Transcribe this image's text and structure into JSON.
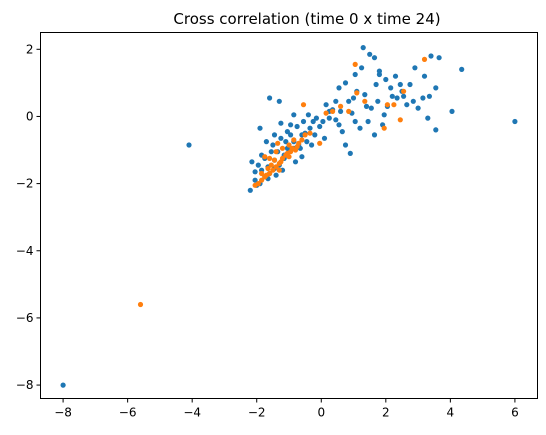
{
  "chart_data": {
    "type": "scatter",
    "title": "Cross correlation (time 0 x time 24)",
    "xlabel": "",
    "ylabel": "",
    "xlim": [
      -8.7,
      6.7
    ],
    "ylim": [
      -8.4,
      2.5
    ],
    "xticks": [
      -8,
      -6,
      -4,
      -2,
      0,
      2,
      4,
      6
    ],
    "yticks": [
      -8,
      -6,
      -4,
      -2,
      0,
      2
    ],
    "grid": false,
    "series": [
      {
        "color": "#1f77b4",
        "points": [
          [
            -8.0,
            -8.0
          ],
          [
            -4.1,
            -0.85
          ],
          [
            6.0,
            -0.15
          ],
          [
            4.35,
            1.4
          ],
          [
            4.05,
            0.15
          ],
          [
            3.55,
            -0.4
          ],
          [
            3.55,
            0.85
          ],
          [
            3.4,
            1.8
          ],
          [
            3.65,
            1.75
          ],
          [
            3.2,
            1.2
          ],
          [
            3.35,
            0.6
          ],
          [
            3.3,
            -0.05
          ],
          [
            2.9,
            1.45
          ],
          [
            2.75,
            0.95
          ],
          [
            2.85,
            0.45
          ],
          [
            2.45,
            0.95
          ],
          [
            2.55,
            0.6
          ],
          [
            2.35,
            0.55
          ],
          [
            2.65,
            0.35
          ],
          [
            2.05,
            0.3
          ],
          [
            2.15,
            0.85
          ],
          [
            2.0,
            1.1
          ],
          [
            1.8,
            1.35
          ],
          [
            1.65,
            1.75
          ],
          [
            1.8,
            1.25
          ],
          [
            1.5,
            1.85
          ],
          [
            1.3,
            2.05
          ],
          [
            1.25,
            1.45
          ],
          [
            1.05,
            1.25
          ],
          [
            1.1,
            0.75
          ],
          [
            1.35,
            0.65
          ],
          [
            1.55,
            0.25
          ],
          [
            1.75,
            0.45
          ],
          [
            1.95,
            0.05
          ],
          [
            1.45,
            -0.15
          ],
          [
            1.2,
            -0.35
          ],
          [
            1.65,
            -0.55
          ],
          [
            1.05,
            -0.15
          ],
          [
            0.85,
            0.45
          ],
          [
            0.75,
            1.0
          ],
          [
            0.55,
            0.85
          ],
          [
            0.45,
            0.45
          ],
          [
            0.35,
            0.2
          ],
          [
            0.15,
            0.35
          ],
          [
            0.25,
            -0.05
          ],
          [
            0.55,
            -0.25
          ],
          [
            0.75,
            -0.85
          ],
          [
            0.9,
            -1.1
          ],
          [
            0.05,
            -0.15
          ],
          [
            -0.05,
            -0.3
          ],
          [
            -0.25,
            -0.15
          ],
          [
            -0.35,
            -0.35
          ],
          [
            -0.5,
            -0.5
          ],
          [
            -0.45,
            -0.75
          ],
          [
            -0.6,
            -0.55
          ],
          [
            -0.75,
            -0.3
          ],
          [
            -0.65,
            -0.95
          ],
          [
            -0.85,
            -0.75
          ],
          [
            -0.95,
            -0.55
          ],
          [
            -1.05,
            -0.95
          ],
          [
            -1.25,
            -0.65
          ],
          [
            -1.15,
            -1.15
          ],
          [
            -1.35,
            -1.05
          ],
          [
            -1.45,
            -1.3
          ],
          [
            -1.55,
            -1.05
          ],
          [
            -1.65,
            -1.5
          ],
          [
            -1.75,
            -1.25
          ],
          [
            -1.85,
            -1.6
          ],
          [
            -1.95,
            -1.45
          ],
          [
            -2.05,
            -1.65
          ],
          [
            -2.15,
            -1.35
          ],
          [
            -2.2,
            -2.2
          ],
          [
            -2.05,
            -1.9
          ],
          [
            -1.9,
            -2.0
          ],
          [
            -1.75,
            -1.8
          ],
          [
            -1.6,
            -1.7
          ],
          [
            -1.45,
            -1.55
          ],
          [
            -1.3,
            -1.45
          ],
          [
            -1.15,
            -1.25
          ],
          [
            -1.0,
            -1.05
          ],
          [
            -0.85,
            -0.95
          ],
          [
            -0.7,
            -0.85
          ],
          [
            -1.1,
            -0.75
          ],
          [
            -1.5,
            -0.85
          ],
          [
            -1.85,
            -1.15
          ],
          [
            -1.6,
            0.55
          ],
          [
            -1.3,
            0.45
          ],
          [
            -1.9,
            -0.35
          ],
          [
            -1.25,
            -0.2
          ],
          [
            -1.05,
            -0.45
          ],
          [
            -0.85,
            0.05
          ],
          [
            -0.55,
            -0.15
          ],
          [
            -0.4,
            0.05
          ],
          [
            -1.45,
            -0.55
          ],
          [
            -1.7,
            -0.75
          ],
          [
            0.25,
            0.15
          ],
          [
            0.45,
            -0.1
          ],
          [
            0.65,
            -0.45
          ],
          [
            0.95,
            0.1
          ],
          [
            1.4,
            0.3
          ],
          [
            1.7,
            0.95
          ],
          [
            2.2,
            0.6
          ],
          [
            2.5,
            0.75
          ],
          [
            3.0,
            0.25
          ],
          [
            3.15,
            0.55
          ],
          [
            -0.2,
            -0.55
          ],
          [
            -0.6,
            -1.2
          ],
          [
            -1.2,
            -1.6
          ],
          [
            -1.65,
            -1.85
          ],
          [
            -2.0,
            -2.05
          ],
          [
            0.1,
            -0.65
          ],
          [
            -0.3,
            -0.85
          ],
          [
            -0.8,
            -1.35
          ],
          [
            -1.4,
            -1.75
          ],
          [
            2.3,
            1.2
          ],
          [
            1.0,
            0.55
          ],
          [
            0.6,
            0.15
          ],
          [
            -0.15,
            -0.05
          ],
          [
            -0.95,
            -0.25
          ],
          [
            1.9,
            -0.25
          ]
        ]
      },
      {
        "color": "#ff7f0e",
        "points": [
          [
            -5.6,
            -5.6
          ],
          [
            3.2,
            1.7
          ],
          [
            2.55,
            0.75
          ],
          [
            2.25,
            0.35
          ],
          [
            2.05,
            0.35
          ],
          [
            2.45,
            -0.1
          ],
          [
            1.95,
            -0.35
          ],
          [
            1.35,
            0.45
          ],
          [
            1.05,
            1.55
          ],
          [
            1.1,
            0.7
          ],
          [
            0.85,
            0.15
          ],
          [
            0.6,
            0.3
          ],
          [
            0.35,
            0.15
          ],
          [
            0.15,
            0.1
          ],
          [
            -0.55,
            0.35
          ],
          [
            -0.05,
            -0.8
          ],
          [
            -0.35,
            -0.5
          ],
          [
            -0.6,
            -0.7
          ],
          [
            -0.75,
            -0.9
          ],
          [
            -0.9,
            -0.95
          ],
          [
            -1.05,
            -1.1
          ],
          [
            -1.2,
            -1.25
          ],
          [
            -1.3,
            -1.4
          ],
          [
            -1.4,
            -1.5
          ],
          [
            -1.5,
            -1.6
          ],
          [
            -1.6,
            -1.7
          ],
          [
            -1.75,
            -1.8
          ],
          [
            -1.85,
            -1.9
          ],
          [
            -1.95,
            -2.0
          ],
          [
            -2.05,
            -2.05
          ],
          [
            -1.6,
            -1.25
          ],
          [
            -1.4,
            -1.05
          ],
          [
            -1.2,
            -0.95
          ],
          [
            -1.0,
            -0.85
          ],
          [
            -0.85,
            -0.7
          ],
          [
            -1.75,
            -1.2
          ],
          [
            -1.55,
            -1.45
          ],
          [
            -1.3,
            -1.6
          ],
          [
            -1.1,
            -1.15
          ],
          [
            -0.95,
            -1.05
          ],
          [
            -0.7,
            -0.8
          ],
          [
            -1.45,
            -1.3
          ],
          [
            -1.65,
            -1.55
          ],
          [
            -1.25,
            -1.35
          ],
          [
            -1.0,
            -1.2
          ],
          [
            -0.8,
            -1.0
          ],
          [
            -0.5,
            -0.55
          ],
          [
            -1.85,
            -1.7
          ],
          [
            -1.7,
            -1.75
          ],
          [
            -1.35,
            -0.8
          ]
        ]
      }
    ]
  }
}
